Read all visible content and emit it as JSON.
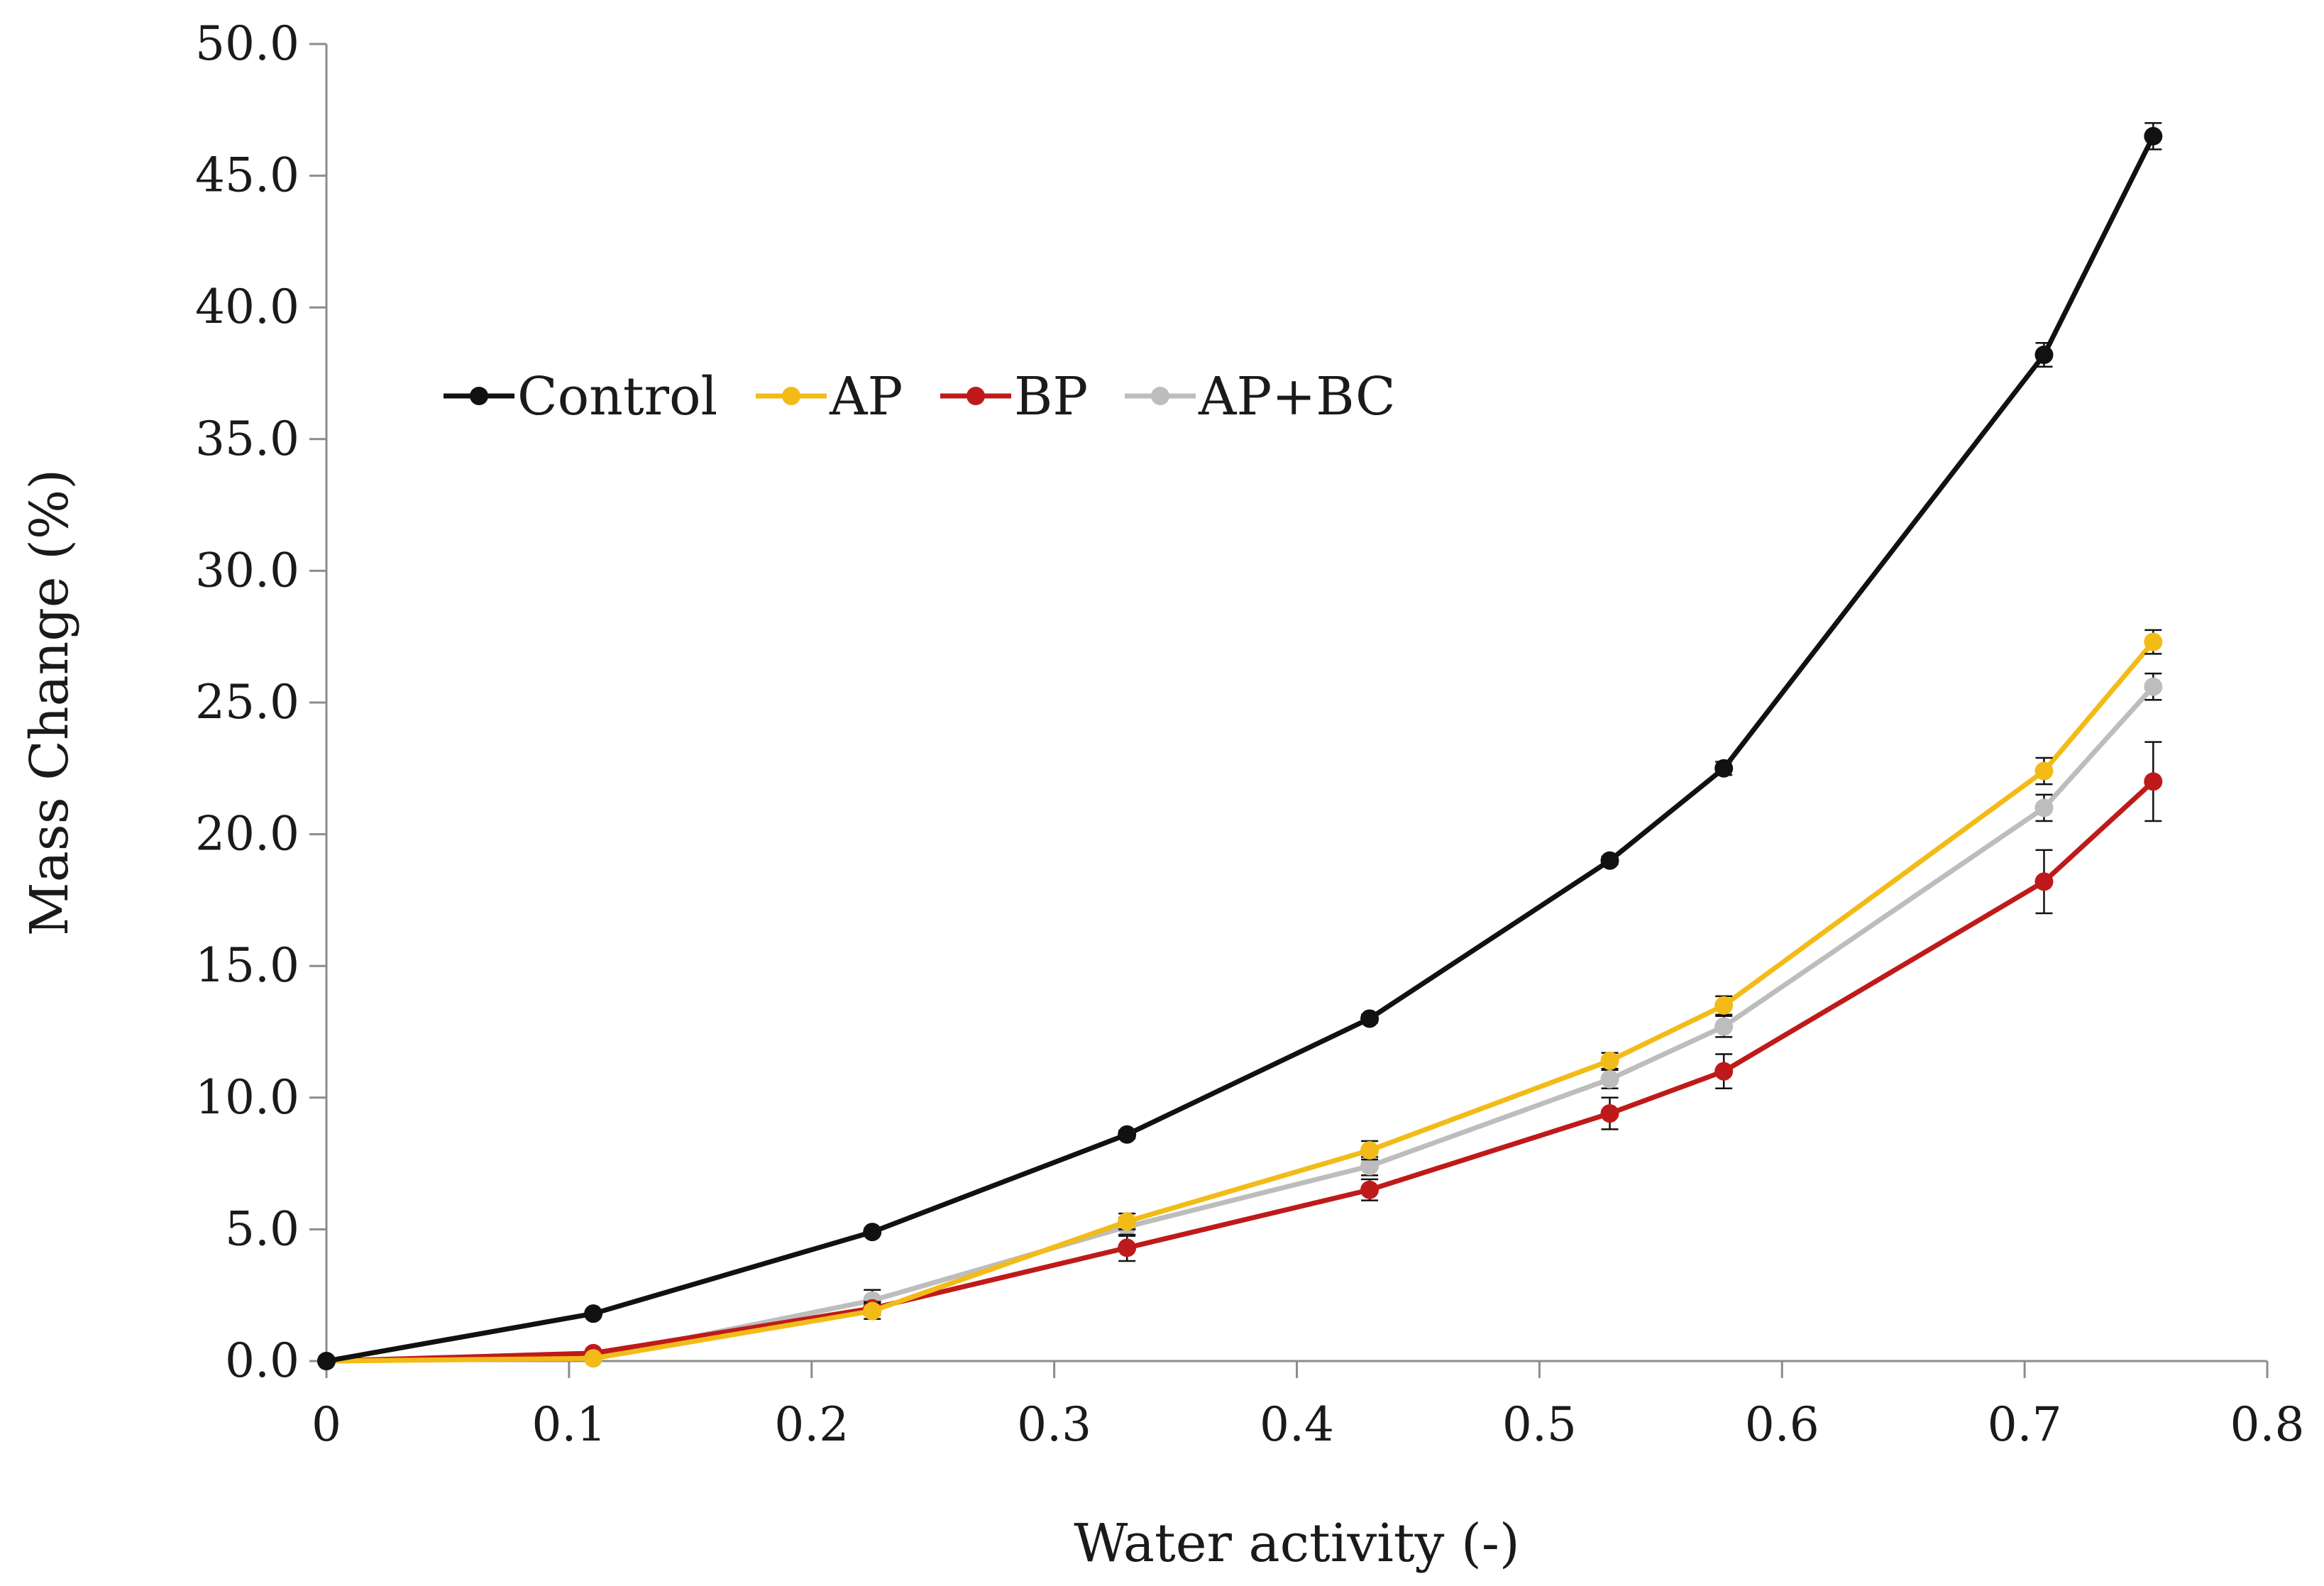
{
  "chart_data": {
    "type": "line",
    "title": "",
    "xlabel": "Water activity (-)",
    "ylabel": "Mass Change (%)",
    "xlim": [
      0,
      0.8
    ],
    "ylim": [
      0,
      50
    ],
    "xticks": [
      0,
      0.1,
      0.2,
      0.3,
      0.4,
      0.5,
      0.6,
      0.7,
      0.8
    ],
    "xtick_labels": [
      "0",
      "0.1",
      "0.2",
      "0.3",
      "0.4",
      "0.5",
      "0.6",
      "0.7",
      "0.8"
    ],
    "yticks": [
      0,
      5,
      10,
      15,
      20,
      25,
      30,
      35,
      40,
      45,
      50
    ],
    "ytick_labels": [
      "0.0",
      "5.0",
      "10.0",
      "15.0",
      "20.0",
      "25.0",
      "30.0",
      "35.0",
      "40.0",
      "45.0",
      "50.0"
    ],
    "grid": false,
    "legend_position": "upper-left",
    "series": [
      {
        "name": "Control",
        "color": "#111111",
        "x": [
          0,
          0.11,
          0.225,
          0.33,
          0.43,
          0.529,
          0.576,
          0.708,
          0.753
        ],
        "y": [
          0.0,
          1.8,
          4.9,
          8.6,
          13.0,
          19.0,
          22.5,
          38.2,
          46.5
        ],
        "err": [
          0.0,
          0.1,
          0.1,
          0.15,
          0.15,
          0.15,
          0.25,
          0.45,
          0.5
        ]
      },
      {
        "name": "AP",
        "color": "#f2bb17",
        "x": [
          0,
          0.11,
          0.225,
          0.33,
          0.43,
          0.529,
          0.576,
          0.708,
          0.753
        ],
        "y": [
          0.0,
          0.1,
          1.9,
          5.3,
          8.0,
          11.4,
          13.5,
          22.4,
          27.3
        ],
        "err": [
          0.0,
          0.1,
          0.3,
          0.3,
          0.35,
          0.3,
          0.35,
          0.5,
          0.45
        ]
      },
      {
        "name": "BP",
        "color": "#bf1a1a",
        "x": [
          0,
          0.11,
          0.225,
          0.33,
          0.43,
          0.529,
          0.576,
          0.708,
          0.753
        ],
        "y": [
          0.0,
          0.3,
          2.0,
          4.3,
          6.5,
          9.4,
          11.0,
          18.2,
          22.0
        ],
        "err": [
          0.0,
          0.1,
          0.25,
          0.5,
          0.4,
          0.6,
          0.65,
          1.2,
          1.5
        ]
      },
      {
        "name": "AP+BC",
        "color": "#bdbdbd",
        "x": [
          0,
          0.11,
          0.225,
          0.33,
          0.43,
          0.529,
          0.576,
          0.708,
          0.753
        ],
        "y": [
          0.0,
          0.15,
          2.3,
          5.1,
          7.4,
          10.7,
          12.7,
          21.0,
          25.6
        ],
        "err": [
          0.0,
          0.1,
          0.4,
          0.35,
          0.35,
          0.35,
          0.4,
          0.5,
          0.5
        ]
      }
    ]
  }
}
